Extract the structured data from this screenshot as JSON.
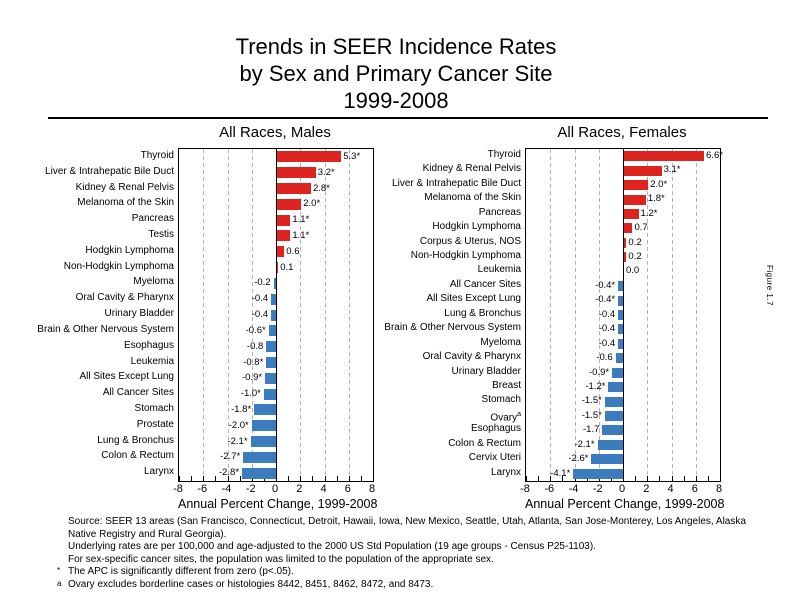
{
  "page": {
    "title_lines": [
      "Trends in SEER Incidence Rates",
      "by Sex and Primary Cancer Site",
      "1999-2008"
    ],
    "figure_label": "Figure 1.7"
  },
  "colors": {
    "positive_bar": "#DD2420",
    "negative_bar": "#3A7CBE",
    "gridline": "#B3B3B3",
    "axis": "#000000"
  },
  "chart_data": [
    {
      "type": "bar",
      "orientation": "horizontal",
      "title": "All Races, Males",
      "xlabel": "Annual Percent Change, 1999-2008",
      "xlim": [
        -8,
        8
      ],
      "xticks": [
        -8,
        -6,
        -4,
        -2,
        0,
        2,
        4,
        6,
        8
      ],
      "grid": "dashed-vertical-at-even-values",
      "bars": [
        {
          "site": "Thyroid",
          "apc": 5.3,
          "label": "5.3*"
        },
        {
          "site": "Liver & Intrahepatic Bile Duct",
          "apc": 3.2,
          "label": "3.2*"
        },
        {
          "site": "Kidney & Renal Pelvis",
          "apc": 2.8,
          "label": "2.8*"
        },
        {
          "site": "Melanoma of the Skin",
          "apc": 2.0,
          "label": "2.0*"
        },
        {
          "site": "Pancreas",
          "apc": 1.1,
          "label": "1.1*"
        },
        {
          "site": "Testis",
          "apc": 1.1,
          "label": "1.1*"
        },
        {
          "site": "Hodgkin Lymphoma",
          "apc": 0.6,
          "label": "0.6"
        },
        {
          "site": "Non-Hodgkin Lymphoma",
          "apc": 0.1,
          "label": "0.1"
        },
        {
          "site": "Myeloma",
          "apc": -0.2,
          "label": "-0.2"
        },
        {
          "site": "Oral Cavity & Pharynx",
          "apc": -0.4,
          "label": "-0.4"
        },
        {
          "site": "Urinary Bladder",
          "apc": -0.4,
          "label": "-0.4"
        },
        {
          "site": "Brain & Other Nervous System",
          "apc": -0.6,
          "label": "-0.6*"
        },
        {
          "site": "Esophagus",
          "apc": -0.8,
          "label": "-0.8"
        },
        {
          "site": "Leukemia",
          "apc": -0.8,
          "label": "-0.8*"
        },
        {
          "site": "All Sites Except Lung",
          "apc": -0.9,
          "label": "-0.9*"
        },
        {
          "site": "All Cancer Sites",
          "apc": -1.0,
          "label": "-1.0*"
        },
        {
          "site": "Stomach",
          "apc": -1.8,
          "label": "-1.8*"
        },
        {
          "site": "Prostate",
          "apc": -2.0,
          "label": "-2.0*"
        },
        {
          "site": "Lung & Bronchus",
          "apc": -2.1,
          "label": "-2.1*"
        },
        {
          "site": "Colon & Rectum",
          "apc": -2.7,
          "label": "-2.7*"
        },
        {
          "site": "Larynx",
          "apc": -2.8,
          "label": "-2.8*"
        }
      ]
    },
    {
      "type": "bar",
      "orientation": "horizontal",
      "title": "All Races, Females",
      "xlabel": "Annual Percent Change, 1999-2008",
      "xlim": [
        -8,
        8
      ],
      "xticks": [
        -8,
        -6,
        -4,
        -2,
        0,
        2,
        4,
        6,
        8
      ],
      "grid": "dashed-vertical-at-even-values",
      "bars": [
        {
          "site": "Thyroid",
          "apc": 6.6,
          "label": "6.6*"
        },
        {
          "site": "Kidney & Renal Pelvis",
          "apc": 3.1,
          "label": "3.1*"
        },
        {
          "site": "Liver & Intrahepatic Bile Duct",
          "apc": 2.0,
          "label": "2.0*"
        },
        {
          "site": "Melanoma of the Skin",
          "apc": 1.8,
          "label": "1.8*"
        },
        {
          "site": "Pancreas",
          "apc": 1.2,
          "label": "1.2*"
        },
        {
          "site": "Hodgkin Lymphoma",
          "apc": 0.7,
          "label": "0.7"
        },
        {
          "site": "Corpus & Uterus, NOS",
          "apc": 0.2,
          "label": "0.2"
        },
        {
          "site": "Non-Hodgkin Lymphoma",
          "apc": 0.2,
          "label": "0.2"
        },
        {
          "site": "Leukemia",
          "apc": 0.0,
          "label": "0.0"
        },
        {
          "site": "All Cancer Sites",
          "apc": -0.4,
          "label": "-0.4*"
        },
        {
          "site": "All Sites Except Lung",
          "apc": -0.4,
          "label": "-0.4*"
        },
        {
          "site": "Lung & Bronchus",
          "apc": -0.4,
          "label": "-0.4"
        },
        {
          "site": "Brain & Other Nervous System",
          "apc": -0.4,
          "label": "-0.4"
        },
        {
          "site": "Myeloma",
          "apc": -0.4,
          "label": "-0.4"
        },
        {
          "site": "Oral Cavity & Pharynx",
          "apc": -0.6,
          "label": "-0.6"
        },
        {
          "site": "Urinary Bladder",
          "apc": -0.9,
          "label": "-0.9*"
        },
        {
          "site": "Breast",
          "apc": -1.2,
          "label": "-1.2*"
        },
        {
          "site": "Stomach",
          "apc": -1.5,
          "label": "-1.5*"
        },
        {
          "site": "Ovary",
          "sup": "a",
          "apc": -1.5,
          "label": "-1.5*"
        },
        {
          "site": "Esophagus",
          "apc": -1.7,
          "label": "-1.7"
        },
        {
          "site": "Colon & Rectum",
          "apc": -2.1,
          "label": "-2.1*"
        },
        {
          "site": "Cervix Uteri",
          "apc": -2.6,
          "label": "-2.6*"
        },
        {
          "site": "Larynx",
          "apc": -4.1,
          "label": "-4.1*"
        }
      ]
    }
  ],
  "footnotes": [
    {
      "marker": "",
      "text": "Source: SEER 13 areas (San Francisco, Connecticut, Detroit, Hawaii, Iowa, New Mexico, Seattle, Utah, Atlanta, San Jose-Monterey, Los Angeles, Alaska Native Registry and Rural Georgia)."
    },
    {
      "marker": "",
      "text": "Underlying rates are per 100,000 and age-adjusted to the 2000 US Std Population (19 age groups - Census P25-1103)."
    },
    {
      "marker": "",
      "text": "For sex-specific cancer sites, the population was limited to the population of the appropriate sex."
    },
    {
      "marker": "*",
      "text": "The APC is significantly different from zero (p<.05)."
    },
    {
      "marker": "a",
      "text": "Ovary excludes borderline cases or histologies 8442, 8451, 8462, 8472, and 8473."
    }
  ]
}
